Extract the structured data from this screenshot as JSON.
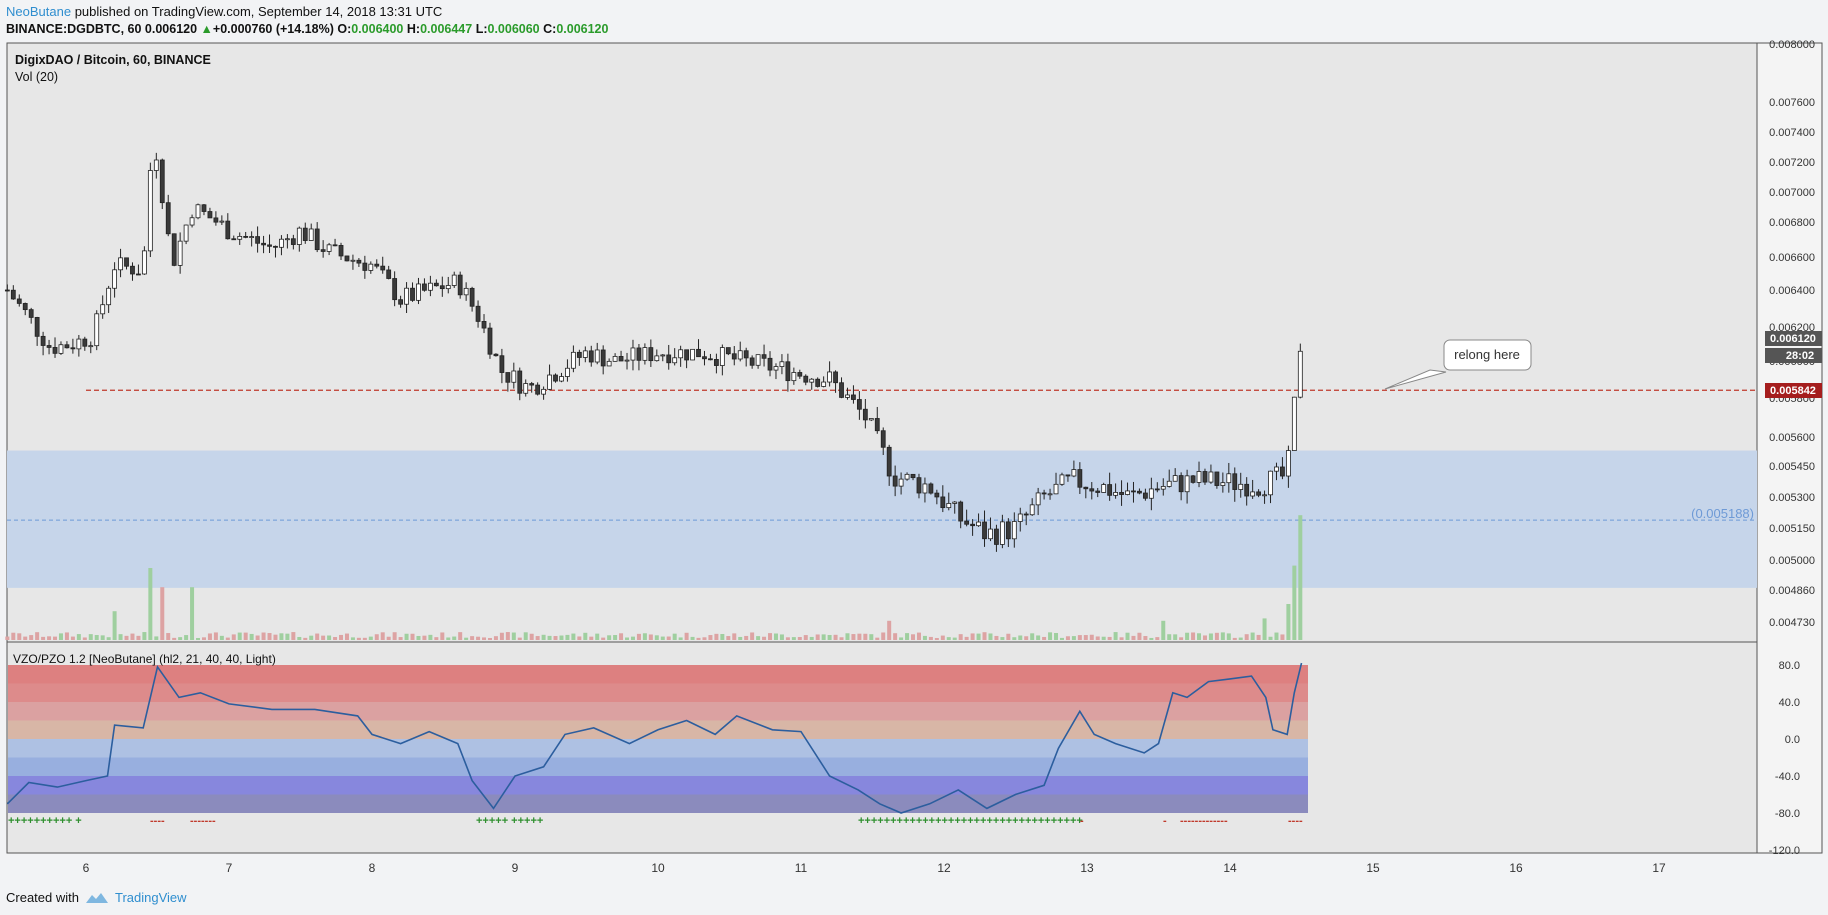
{
  "header": {
    "author": "NeoButane",
    "published": "published on TradingView.com, September 14, 2018 13:31 UTC",
    "symbol": "BINANCE:DGDBTC, 60",
    "last": "0.006120",
    "change": "+0.000760 (+14.18%)",
    "o_label": "O:",
    "o_value": "0.006400",
    "h_label": "H:",
    "h_value": "0.006447",
    "l_label": "L:",
    "l_value": "0.006060",
    "c_label": "C:",
    "c_value": "0.006120"
  },
  "footer": {
    "created_with": "Created with",
    "brand": "TradingView"
  },
  "colors": {
    "bg": "#e7e7e7",
    "up_fill": "#ffffff",
    "down_fill": "#3a3a3a",
    "wick": "#222222",
    "support_line": "#c0392b",
    "zone": "#c6d5ea",
    "zone_mid": "#6e9ad6",
    "osc_line": "#2c5e9e",
    "vol_up": "#9fcf9f",
    "vol_down": "#dda3a3"
  },
  "chart_data": [
    {
      "type": "candlestick",
      "title": "DigixDAO / Bitcoin, 60, BINANCE",
      "subtitle": "Vol (20)",
      "xlabel": "",
      "ylabel": "",
      "x_ticks": [
        "6",
        "7",
        "8",
        "9",
        "10",
        "11",
        "12",
        "13",
        "14",
        "15",
        "16",
        "17"
      ],
      "x_range": [
        5.45,
        17.7
      ],
      "y_ticks": [
        "0.008000",
        "0.007600",
        "0.007400",
        "0.007200",
        "0.007000",
        "0.006800",
        "0.006600",
        "0.006400",
        "0.006200",
        "0.006000",
        "0.005800",
        "0.005600",
        "0.005450",
        "0.005300",
        "0.005150",
        "0.005000",
        "0.004860",
        "0.004730"
      ],
      "last_price_label": "0.006120",
      "countdown_label": "28:02",
      "support_label": "0.005842",
      "support_price": 0.005842,
      "zone_top": 0.00553,
      "zone_bottom": 0.00487,
      "zone_mid_label": "(0.005188)",
      "zone_mid": 0.005188,
      "annotation": "relong here",
      "price_path": [
        [
          5.45,
          0.0064
        ],
        [
          5.6,
          0.00625
        ],
        [
          5.75,
          0.00608
        ],
        [
          5.9,
          0.0061
        ],
        [
          6.05,
          0.00615
        ],
        [
          6.2,
          0.00655
        ],
        [
          6.4,
          0.00652
        ],
        [
          6.47,
          0.0074
        ],
        [
          6.6,
          0.00655
        ],
        [
          6.75,
          0.0069
        ],
        [
          7.0,
          0.00675
        ],
        [
          7.3,
          0.00665
        ],
        [
          7.5,
          0.00675
        ],
        [
          7.7,
          0.00663
        ],
        [
          8.0,
          0.00655
        ],
        [
          8.2,
          0.00635
        ],
        [
          8.4,
          0.0064
        ],
        [
          8.6,
          0.00645
        ],
        [
          8.75,
          0.00625
        ],
        [
          8.9,
          0.00595
        ],
        [
          9.1,
          0.00585
        ],
        [
          9.3,
          0.00595
        ],
        [
          9.5,
          0.00605
        ],
        [
          9.7,
          0.006
        ],
        [
          10.0,
          0.00605
        ],
        [
          10.3,
          0.00605
        ],
        [
          10.6,
          0.006
        ],
        [
          10.9,
          0.00595
        ],
        [
          11.2,
          0.0059
        ],
        [
          11.45,
          0.0057
        ],
        [
          11.65,
          0.0054
        ],
        [
          11.9,
          0.00535
        ],
        [
          12.1,
          0.0052
        ],
        [
          12.3,
          0.00512
        ],
        [
          12.5,
          0.00515
        ],
        [
          12.7,
          0.0053
        ],
        [
          12.9,
          0.00538
        ],
        [
          13.1,
          0.00535
        ],
        [
          13.3,
          0.0053
        ],
        [
          13.5,
          0.00535
        ],
        [
          13.75,
          0.00538
        ],
        [
          14.0,
          0.00537
        ],
        [
          14.2,
          0.00536
        ],
        [
          14.38,
          0.0054
        ],
        [
          14.42,
          0.0055
        ],
        [
          14.46,
          0.00585
        ],
        [
          14.5,
          0.00615
        ]
      ],
      "volume_spikes": [
        [
          6.47,
          0.3
        ],
        [
          6.52,
          0.22
        ],
        [
          6.75,
          0.22
        ],
        [
          6.22,
          0.12
        ],
        [
          11.6,
          0.08
        ],
        [
          13.55,
          0.08
        ],
        [
          14.25,
          0.09
        ],
        [
          14.4,
          0.15
        ],
        [
          14.45,
          0.31
        ],
        [
          14.5,
          0.52
        ],
        [
          14.54,
          0.18
        ]
      ]
    },
    {
      "type": "line",
      "title": "VZO/PZO 1.2 [NeoButane] (hl2, 21, 40, 40, Light)",
      "y_ticks": [
        "80.0",
        "40.0",
        "0.0",
        "-40.0",
        "-80.0",
        "-120.0"
      ],
      "y_range": [
        -120,
        80
      ],
      "values": [
        [
          5.45,
          -70
        ],
        [
          5.6,
          -47
        ],
        [
          5.8,
          -52
        ],
        [
          6.0,
          -45
        ],
        [
          6.15,
          -40
        ],
        [
          6.2,
          15
        ],
        [
          6.4,
          12
        ],
        [
          6.5,
          78
        ],
        [
          6.65,
          45
        ],
        [
          6.8,
          50
        ],
        [
          7.0,
          38
        ],
        [
          7.3,
          32
        ],
        [
          7.6,
          32
        ],
        [
          7.9,
          25
        ],
        [
          8.0,
          5
        ],
        [
          8.2,
          -5
        ],
        [
          8.4,
          8
        ],
        [
          8.6,
          -5
        ],
        [
          8.7,
          -45
        ],
        [
          8.85,
          -75
        ],
        [
          9.0,
          -40
        ],
        [
          9.2,
          -30
        ],
        [
          9.35,
          5
        ],
        [
          9.55,
          12
        ],
        [
          9.8,
          -5
        ],
        [
          10.0,
          10
        ],
        [
          10.2,
          20
        ],
        [
          10.4,
          5
        ],
        [
          10.55,
          25
        ],
        [
          10.8,
          10
        ],
        [
          11.0,
          8
        ],
        [
          11.2,
          -40
        ],
        [
          11.4,
          -55
        ],
        [
          11.55,
          -70
        ],
        [
          11.7,
          -80
        ],
        [
          11.9,
          -70
        ],
        [
          12.1,
          -55
        ],
        [
          12.3,
          -75
        ],
        [
          12.5,
          -60
        ],
        [
          12.7,
          -50
        ],
        [
          12.8,
          -10
        ],
        [
          12.95,
          30
        ],
        [
          13.05,
          5
        ],
        [
          13.2,
          -5
        ],
        [
          13.4,
          -15
        ],
        [
          13.5,
          -5
        ],
        [
          13.6,
          50
        ],
        [
          13.7,
          45
        ],
        [
          13.85,
          62
        ],
        [
          14.0,
          65
        ],
        [
          14.15,
          68
        ],
        [
          14.25,
          45
        ],
        [
          14.3,
          10
        ],
        [
          14.4,
          5
        ],
        [
          14.45,
          50
        ],
        [
          14.5,
          82
        ]
      ],
      "plus_marks": [
        "++++++++++  +",
        "+++++ +++++",
        "+++++++++++++++++++++++++++++++++++"
      ],
      "minus_marks": [
        "----",
        "-------",
        "-",
        "-",
        "-------------",
        "----"
      ]
    }
  ]
}
